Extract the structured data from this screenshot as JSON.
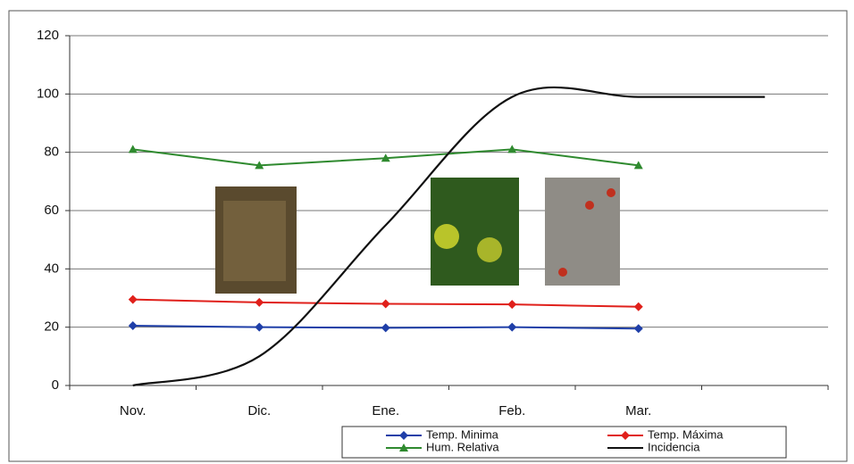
{
  "chart_data": {
    "type": "line",
    "categories": [
      "Nov.",
      "Dic.",
      "Ene.",
      "Feb.",
      "Mar.",
      null
    ],
    "series": [
      {
        "name": "Temp. Minima",
        "color": "#1f3fa8",
        "marker": "diamond",
        "values": [
          20.5,
          20,
          19.8,
          20,
          19.5,
          null
        ]
      },
      {
        "name": "Temp. Máxima",
        "color": "#e0201b",
        "marker": "diamond",
        "values": [
          29.5,
          28.5,
          28,
          27.8,
          27,
          null
        ]
      },
      {
        "name": "Hum. Relativa",
        "color": "#2f8a2f",
        "marker": "triangle",
        "values": [
          81,
          75.5,
          78,
          81,
          75.5,
          null
        ]
      },
      {
        "name": "Incidencia",
        "color": "#111111",
        "marker": "none",
        "smooth": true,
        "values": [
          0,
          10,
          55,
          99,
          99,
          99
        ]
      }
    ],
    "ylim": [
      0,
      120
    ],
    "yticks": [
      0,
      20,
      40,
      60,
      80,
      100,
      120
    ],
    "grid": true,
    "legend": "bottom"
  }
}
